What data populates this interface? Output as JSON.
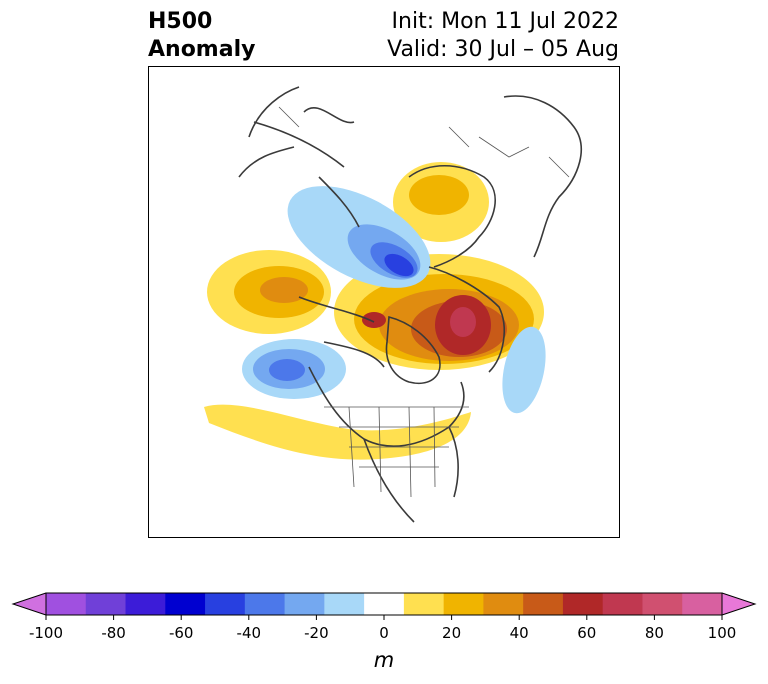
{
  "header": {
    "title_line1": "H500",
    "title_line2": "Anomaly",
    "init_text": "Init: Mon 11 Jul 2022",
    "valid_text": "Valid: 30 Jul – 05 Aug"
  },
  "map": {
    "projection": "polar stereographic, North America / Arctic",
    "field": "500 hPa geopotential height anomaly"
  },
  "colorbar": {
    "unit": "m",
    "ticks": [
      "-100",
      "-80",
      "-60",
      "-40",
      "-20",
      "0",
      "20",
      "40",
      "60",
      "80",
      "100"
    ],
    "colors": [
      "#d070e0",
      "#a050e0",
      "#7040d8",
      "#3c1cd8",
      "#0000d0",
      "#2840e0",
      "#4c78ea",
      "#74a8f0",
      "#a8d8f8",
      "#ffffff",
      "#ffe050",
      "#f0b400",
      "#e08c10",
      "#c85a18",
      "#b02828",
      "#c03850",
      "#d05070",
      "#d860a0",
      "#e878d8"
    ],
    "colors_left_arrow": "#d070e0",
    "colors_right_arrow": "#e878d8"
  },
  "colors": {
    "land_border": "#3a3a3a",
    "frame": "#000000"
  }
}
